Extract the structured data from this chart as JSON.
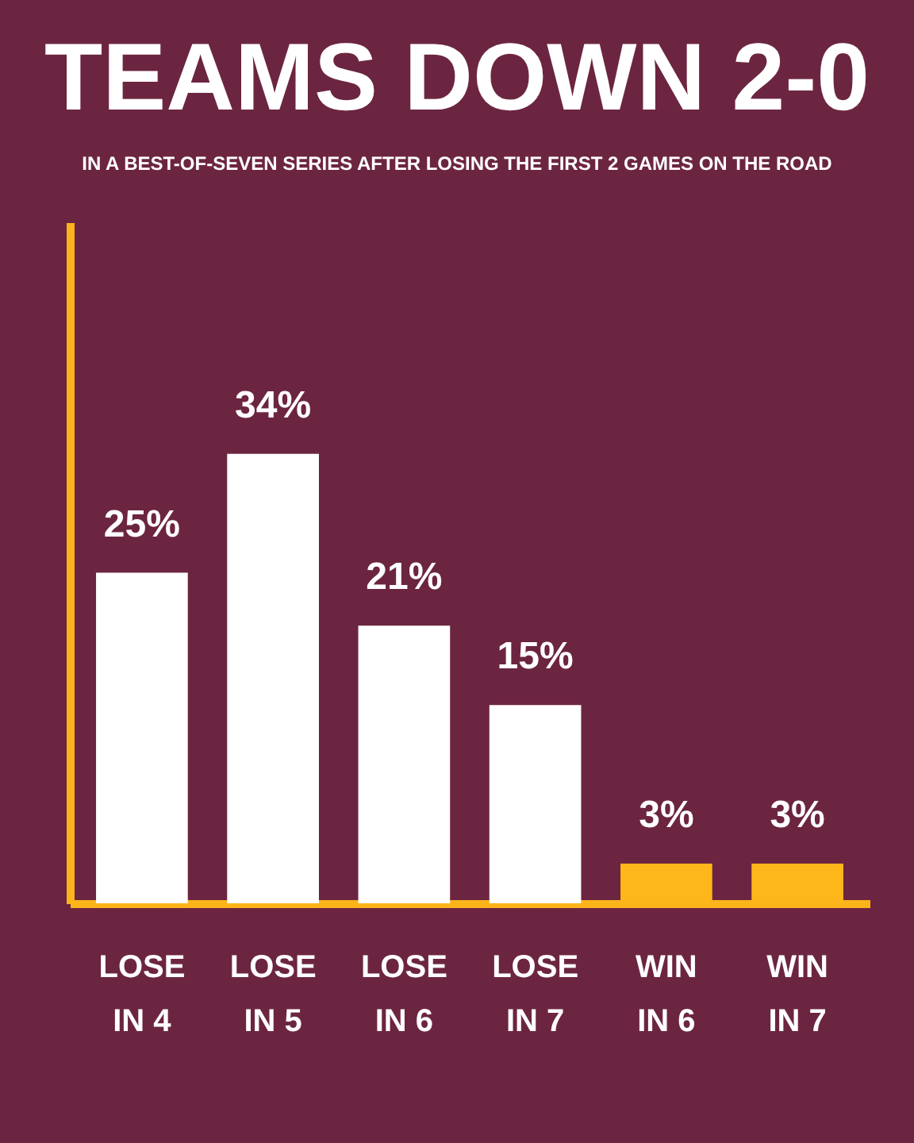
{
  "chart_data": {
    "type": "bar",
    "title": "TEAMS DOWN 2-0",
    "subtitle": "IN A BEST-OF-SEVEN SERIES AFTER LOSING THE FIRST 2 GAMES ON THE ROAD",
    "categories": [
      "LOSE IN 4",
      "LOSE IN 5",
      "LOSE IN 6",
      "LOSE IN 7",
      "WIN IN 6",
      "WIN IN 7"
    ],
    "values": [
      25,
      34,
      21,
      15,
      3,
      3
    ],
    "colors": [
      "#ffffff",
      "#ffffff",
      "#ffffff",
      "#ffffff",
      "#fdb71a",
      "#fdb71a"
    ],
    "value_labels": [
      "25%",
      "34%",
      "21%",
      "15%",
      "3%",
      "3%"
    ],
    "tick_labels": "x"
  }
}
